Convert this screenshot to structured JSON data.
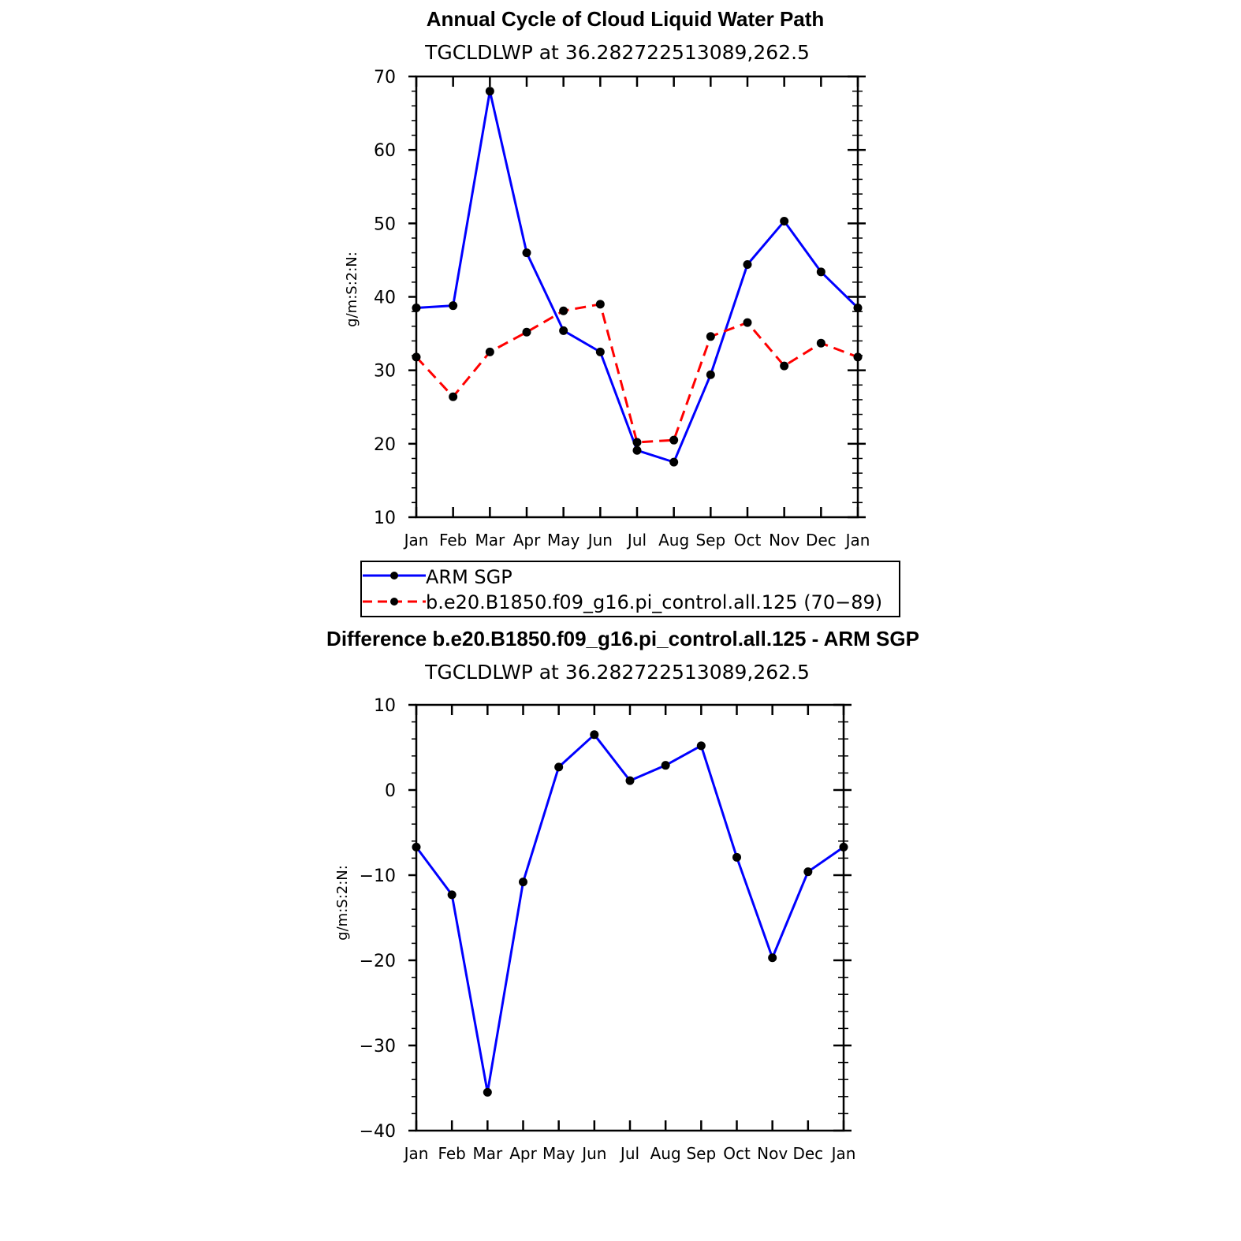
{
  "chart_data": [
    {
      "type": "line",
      "title": "Annual Cycle of Cloud Liquid Water Path",
      "subtitle": "TGCLDLWP  at  36.282722513089,262.5",
      "ylabel": "g/m:S:2:N:",
      "xlabel": "",
      "ylim": [
        10,
        70
      ],
      "yticks": [
        10,
        20,
        30,
        40,
        50,
        60,
        70
      ],
      "ytick_labels": [
        "10",
        "20",
        "30",
        "40",
        "50",
        "60",
        "70"
      ],
      "categories": [
        "Jan",
        "Feb",
        "Mar",
        "Apr",
        "May",
        "Jun",
        "Jul",
        "Aug",
        "Sep",
        "Oct",
        "Nov",
        "Dec",
        "Jan"
      ],
      "series": [
        {
          "name": "ARM SGP",
          "color": "#0000ff",
          "dash": false,
          "values": [
            38.5,
            38.8,
            68.0,
            46.0,
            35.4,
            32.5,
            19.1,
            17.5,
            29.4,
            44.4,
            50.3,
            43.4,
            38.5
          ]
        },
        {
          "name": "b.e20.B1850.f09_g16.pi_control.all.125 (70−89)",
          "color": "#ff0000",
          "dash": true,
          "values": [
            31.8,
            26.4,
            32.5,
            35.2,
            38.1,
            39.0,
            20.2,
            20.5,
            34.6,
            36.5,
            30.6,
            33.7,
            31.8
          ]
        }
      ],
      "legend_position": "below"
    },
    {
      "type": "line",
      "title": "Difference b.e20.B1850.f09_g16.pi_control.all.125 - ARM SGP",
      "subtitle": "TGCLDLWP  at  36.282722513089,262.5",
      "ylabel": "g/m:S:2:N:",
      "xlabel": "",
      "ylim": [
        -40,
        10
      ],
      "yticks": [
        -40,
        -30,
        -20,
        -10,
        0,
        10
      ],
      "ytick_labels": [
        "−40",
        "−30",
        "−20",
        "−10",
        "0",
        "10"
      ],
      "categories": [
        "Jan",
        "Feb",
        "Mar",
        "Apr",
        "May",
        "Jun",
        "Jul",
        "Aug",
        "Sep",
        "Oct",
        "Nov",
        "Dec",
        "Jan"
      ],
      "series": [
        {
          "name": "Difference",
          "color": "#0000ff",
          "dash": false,
          "values": [
            -6.7,
            -12.3,
            -35.5,
            -10.8,
            2.7,
            6.5,
            1.1,
            2.9,
            5.2,
            -7.9,
            -19.7,
            -9.6,
            -6.7
          ]
        }
      ]
    }
  ]
}
